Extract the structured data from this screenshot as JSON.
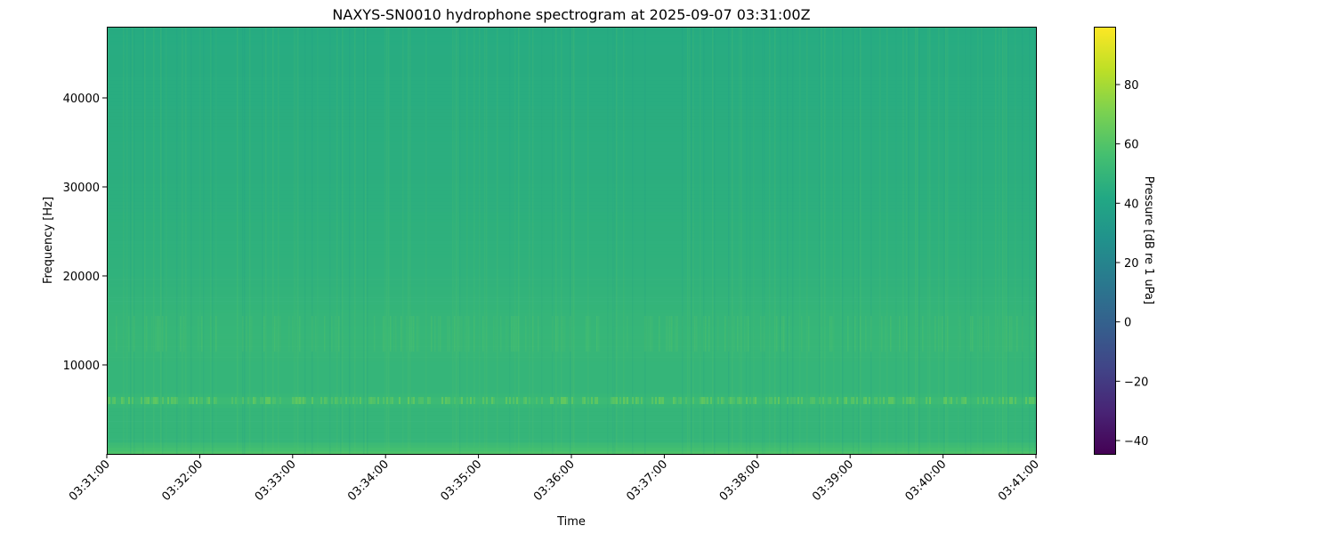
{
  "chart_data": {
    "type": "heatmap",
    "title": "NAXYS-SN0010 hydrophone spectrogram at 2025-09-07 03:31:00Z",
    "xlabel": "Time",
    "ylabel": "Frequency [Hz]",
    "x_ticks": [
      "03:31:00",
      "03:32:00",
      "03:33:00",
      "03:34:00",
      "03:35:00",
      "03:36:00",
      "03:37:00",
      "03:38:00",
      "03:39:00",
      "03:40:00",
      "03:41:00"
    ],
    "xlim": [
      "03:31:00",
      "03:41:00"
    ],
    "y_ticks": [
      10000,
      20000,
      30000,
      40000
    ],
    "ylim": [
      0,
      48000
    ],
    "colormap": "viridis",
    "colorbar": {
      "label": "Pressure [dB re 1 uPa]",
      "ticks": [
        -40,
        -20,
        0,
        20,
        40,
        60,
        80
      ],
      "range": [
        -44.5,
        99.5
      ]
    },
    "frequency_profile_db": [
      {
        "freq_hz": 0,
        "db": 58
      },
      {
        "freq_hz": 300,
        "db": 60
      },
      {
        "freq_hz": 700,
        "db": 52
      },
      {
        "freq_hz": 1000,
        "db": 56
      },
      {
        "freq_hz": 1300,
        "db": 50
      },
      {
        "freq_hz": 5200,
        "db": 50
      },
      {
        "freq_hz": 6000,
        "db": 54
      },
      {
        "freq_hz": 6800,
        "db": 50
      },
      {
        "freq_hz": 10000,
        "db": 50
      },
      {
        "freq_hz": 12500,
        "db": 51
      },
      {
        "freq_hz": 15500,
        "db": 50
      },
      {
        "freq_hz": 20000,
        "db": 48
      },
      {
        "freq_hz": 30000,
        "db": 46
      },
      {
        "freq_hz": 40000,
        "db": 45
      },
      {
        "freq_hz": 48000,
        "db": 44
      }
    ]
  }
}
